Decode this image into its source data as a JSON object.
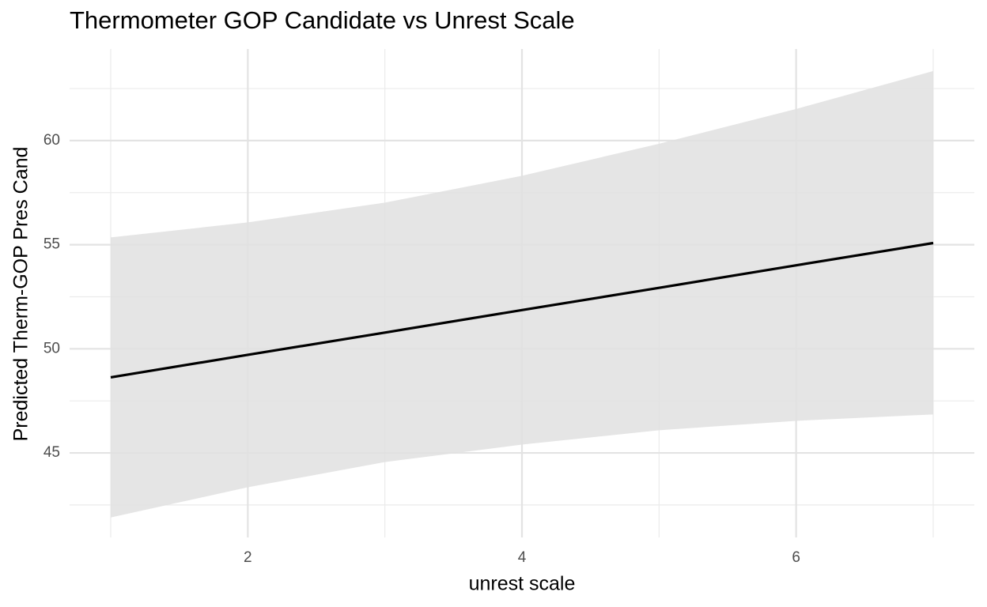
{
  "chart_data": {
    "type": "line",
    "title": "Thermometer GOP Candidate vs Unrest Scale",
    "xlabel": "unrest scale",
    "ylabel": "Predicted Therm-GOP Pres Cand",
    "x": [
      1,
      2,
      3,
      4,
      5,
      6,
      7
    ],
    "values": [
      48.63,
      49.71,
      50.78,
      51.86,
      52.93,
      54.01,
      55.08
    ],
    "lower": [
      41.9,
      43.35,
      44.56,
      45.4,
      46.09,
      46.54,
      46.85
    ],
    "upper": [
      55.35,
      56.07,
      57.02,
      58.31,
      59.85,
      61.52,
      63.34
    ],
    "color": "#000000",
    "band_color": "#e0e0e0",
    "xlim": [
      0.7,
      7.3
    ],
    "ylim": [
      40.94,
      64.4
    ],
    "xticks": [
      2,
      4,
      6
    ],
    "yticks": [
      45,
      50,
      55,
      60
    ],
    "xminor": [
      1,
      3,
      5,
      7
    ],
    "yminor": [
      42.5,
      47.5,
      52.5,
      57.5,
      62.5
    ],
    "grid": true
  }
}
